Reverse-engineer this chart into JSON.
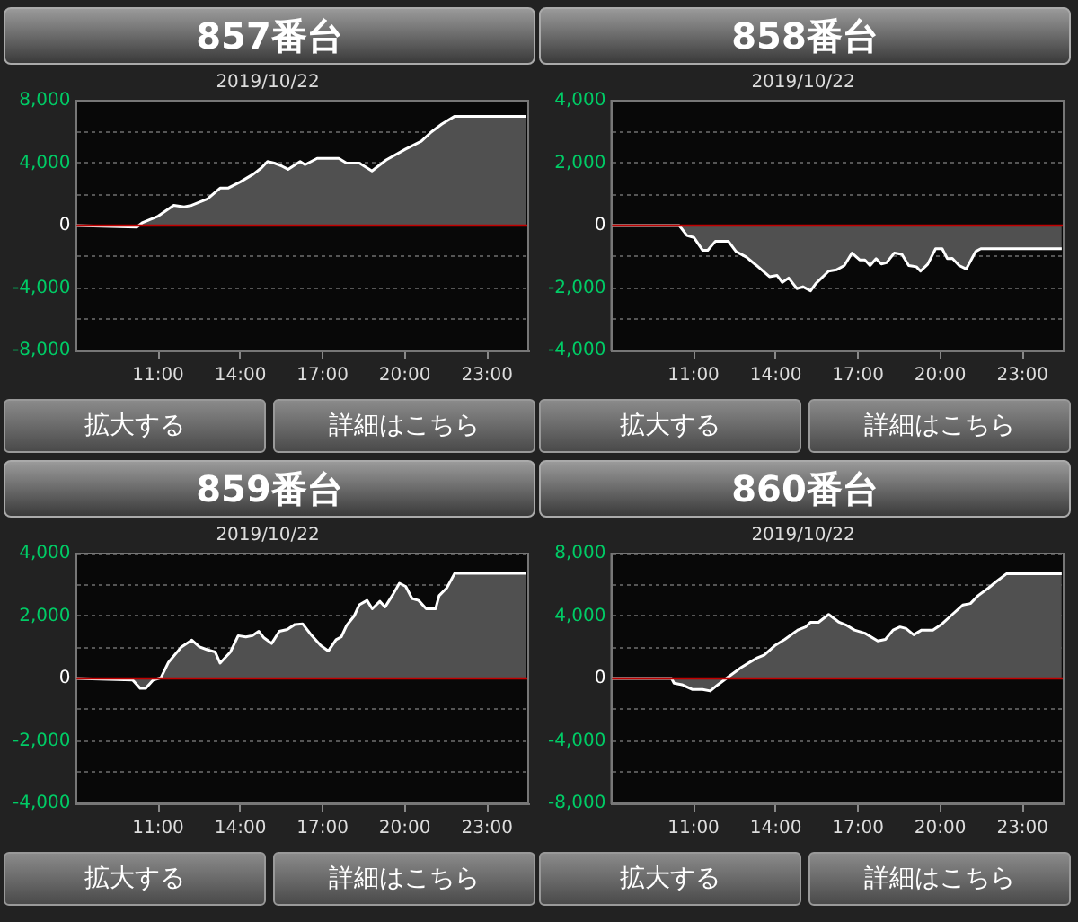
{
  "chart_data": [
    {
      "type": "area",
      "title": "857番台",
      "subtitle": "2019/10/22",
      "annotations": [
        "拡大する",
        "詳細はこちら"
      ],
      "marker": "none",
      "grid": "y",
      "color": "#ffffff",
      "ref_lines": [
        {
          "axis": "y",
          "value": 0,
          "color": "#c00000"
        }
      ],
      "xlim": [
        8,
        24.5
      ],
      "xticks": [
        {
          "value": 11,
          "label": "11:00"
        },
        {
          "value": 14,
          "label": "14:00"
        },
        {
          "value": 17,
          "label": "17:00"
        },
        {
          "value": 20,
          "label": "20:00"
        },
        {
          "value": 23,
          "label": "23:00"
        }
      ],
      "ylim": [
        -8000,
        8000
      ],
      "yticks": [
        {
          "value": -8000,
          "label": "-8,000"
        },
        {
          "value": -6000,
          "label": null
        },
        {
          "value": -4000,
          "label": "-4,000"
        },
        {
          "value": -2000,
          "label": null
        },
        {
          "value": 0,
          "label": "0"
        },
        {
          "value": 2000,
          "label": null
        },
        {
          "value": 4000,
          "label": "4,000"
        },
        {
          "value": 6000,
          "label": null
        },
        {
          "value": 8000,
          "label": "8,000"
        }
      ],
      "x": [
        8,
        10.22,
        10.44,
        11,
        11.57,
        11.95,
        12.23,
        12.8,
        13.26,
        13.55,
        14,
        14.48,
        14.77,
        14.99,
        15.24,
        15.52,
        15.74,
        16.18,
        16.36,
        16.8,
        17.59,
        17.87,
        18.34,
        18.8,
        19.32,
        20.03,
        20.6,
        20.97,
        21.35,
        21.82,
        24.41
      ],
      "values": [
        0,
        -100,
        200,
        600,
        1300,
        1200,
        1300,
        1700,
        2400,
        2400,
        2800,
        3300,
        3700,
        4100,
        4000,
        3800,
        3600,
        4100,
        3900,
        4300,
        4300,
        4000,
        4000,
        3500,
        4200,
        4900,
        5400,
        6000,
        6500,
        7000,
        7000
      ]
    },
    {
      "type": "area",
      "title": "858番台",
      "subtitle": "2019/10/22",
      "annotations": [
        "拡大する",
        "詳細はこちら"
      ],
      "marker": "none",
      "grid": "y",
      "color": "#ffffff",
      "ref_lines": [
        {
          "axis": "y",
          "value": 0,
          "color": "#c00000"
        }
      ],
      "xlim": [
        8,
        24.5
      ],
      "xticks": [
        {
          "value": 11,
          "label": "11:00"
        },
        {
          "value": 14,
          "label": "14:00"
        },
        {
          "value": 17,
          "label": "17:00"
        },
        {
          "value": 20,
          "label": "20:00"
        },
        {
          "value": 23,
          "label": "23:00"
        }
      ],
      "ylim": [
        -4000,
        4000
      ],
      "yticks": [
        {
          "value": -4000,
          "label": "-4,000"
        },
        {
          "value": -3000,
          "label": null
        },
        {
          "value": -2000,
          "label": "-2,000"
        },
        {
          "value": -1000,
          "label": null
        },
        {
          "value": 0,
          "label": "0"
        },
        {
          "value": 1000,
          "label": null
        },
        {
          "value": 2000,
          "label": "2,000"
        },
        {
          "value": 3000,
          "label": null
        },
        {
          "value": 4000,
          "label": "4,000"
        }
      ],
      "x": [
        8,
        10.48,
        10.76,
        11.01,
        11.33,
        11.52,
        11.8,
        12.27,
        12.55,
        12.93,
        13.3,
        13.77,
        14.05,
        14.24,
        14.47,
        14.77,
        14.99,
        15.27,
        15.46,
        15.93,
        16.21,
        16.5,
        16.78,
        17.06,
        17.25,
        17.44,
        17.66,
        17.85,
        18.04,
        18.32,
        18.6,
        18.85,
        19.13,
        19.28,
        19.54,
        19.83,
        20.07,
        20.26,
        20.44,
        20.69,
        20.95,
        21.29,
        21.48,
        24.43
      ],
      "values": [
        0,
        0,
        -320,
        -380,
        -790,
        -790,
        -500,
        -500,
        -830,
        -1010,
        -1280,
        -1640,
        -1600,
        -1820,
        -1680,
        -2020,
        -1960,
        -2090,
        -1860,
        -1460,
        -1420,
        -1280,
        -880,
        -1100,
        -1100,
        -1280,
        -1060,
        -1230,
        -1190,
        -880,
        -920,
        -1280,
        -1320,
        -1460,
        -1240,
        -740,
        -740,
        -1060,
        -1050,
        -1280,
        -1390,
        -830,
        -740,
        -740
      ]
    },
    {
      "type": "area",
      "title": "859番台",
      "subtitle": "2019/10/22",
      "annotations": [
        "拡大する",
        "詳細はこちら"
      ],
      "marker": "none",
      "grid": "y",
      "color": "#ffffff",
      "ref_lines": [
        {
          "axis": "y",
          "value": 0,
          "color": "#c00000"
        }
      ],
      "xlim": [
        8,
        24.5
      ],
      "xticks": [
        {
          "value": 11,
          "label": "11:00"
        },
        {
          "value": 14,
          "label": "14:00"
        },
        {
          "value": 17,
          "label": "17:00"
        },
        {
          "value": 20,
          "label": "20:00"
        },
        {
          "value": 23,
          "label": "23:00"
        }
      ],
      "ylim": [
        -4000,
        4000
      ],
      "yticks": [
        {
          "value": -4000,
          "label": "-4,000"
        },
        {
          "value": -3000,
          "label": null
        },
        {
          "value": -2000,
          "label": "-2,000"
        },
        {
          "value": -1000,
          "label": null
        },
        {
          "value": 0,
          "label": "0"
        },
        {
          "value": 1000,
          "label": null
        },
        {
          "value": 2000,
          "label": "2,000"
        },
        {
          "value": 3000,
          "label": null
        },
        {
          "value": 4000,
          "label": "4,000"
        }
      ],
      "x": [
        8,
        10.07,
        10.35,
        10.54,
        10.82,
        11.1,
        11.38,
        11.85,
        12.23,
        12.51,
        12.79,
        13.08,
        13.26,
        13.64,
        13.92,
        14.2,
        14.43,
        14.67,
        14.86,
        15.14,
        15.42,
        15.71,
        15.99,
        16.27,
        16.56,
        16.93,
        17.21,
        17.49,
        17.68,
        17.87,
        18.15,
        18.34,
        18.62,
        18.81,
        19.09,
        19.28,
        19.56,
        19.8,
        20.03,
        20.26,
        20.5,
        20.78,
        21.12,
        21.25,
        21.53,
        21.82,
        24.41
      ],
      "values": [
        0,
        -50,
        -320,
        -320,
        -50,
        20,
        520,
        1010,
        1230,
        1010,
        920,
        850,
        490,
        850,
        1370,
        1330,
        1370,
        1510,
        1300,
        1120,
        1510,
        1570,
        1730,
        1750,
        1420,
        1060,
        880,
        1240,
        1330,
        1690,
        2000,
        2360,
        2500,
        2230,
        2470,
        2290,
        2680,
        3050,
        2950,
        2560,
        2500,
        2230,
        2230,
        2650,
        2900,
        3370,
        3370
      ]
    },
    {
      "type": "area",
      "title": "860番台",
      "subtitle": "2019/10/22",
      "annotations": [
        "拡大する",
        "詳細はこちら"
      ],
      "marker": "none",
      "grid": "y",
      "color": "#ffffff",
      "ref_lines": [
        {
          "axis": "y",
          "value": 0,
          "color": "#c00000"
        }
      ],
      "xlim": [
        8,
        24.5
      ],
      "xticks": [
        {
          "value": 11,
          "label": "11:00"
        },
        {
          "value": 14,
          "label": "14:00"
        },
        {
          "value": 17,
          "label": "17:00"
        },
        {
          "value": 20,
          "label": "20:00"
        },
        {
          "value": 23,
          "label": "23:00"
        }
      ],
      "ylim": [
        -8000,
        8000
      ],
      "yticks": [
        {
          "value": -8000,
          "label": "-8,000"
        },
        {
          "value": -6000,
          "label": null
        },
        {
          "value": -4000,
          "label": "-4,000"
        },
        {
          "value": -2000,
          "label": null
        },
        {
          "value": 0,
          "label": "0"
        },
        {
          "value": 2000,
          "label": null
        },
        {
          "value": 4000,
          "label": "4,000"
        },
        {
          "value": 6000,
          "label": null
        },
        {
          "value": 8000,
          "label": "8,000"
        }
      ],
      "x": [
        8,
        10.2,
        10.29,
        10.58,
        10.95,
        11.33,
        11.61,
        11.89,
        12.27,
        12.74,
        13.11,
        13.3,
        13.58,
        13.96,
        14.33,
        14.8,
        15.09,
        15.27,
        15.56,
        15.93,
        16.31,
        16.59,
        16.87,
        17.25,
        17.72,
        18,
        18.28,
        18.53,
        18.75,
        19.03,
        19.32,
        19.73,
        20.07,
        20.44,
        20.82,
        21.1,
        21.38,
        21.76,
        22.04,
        22.41,
        24.43
      ],
      "values": [
        0,
        0,
        -300,
        -400,
        -700,
        -700,
        -800,
        -400,
        100,
        700,
        1100,
        1300,
        1500,
        2100,
        2500,
        3100,
        3300,
        3600,
        3600,
        4100,
        3600,
        3400,
        3100,
        2900,
        2400,
        2500,
        3100,
        3300,
        3200,
        2800,
        3100,
        3100,
        3500,
        4100,
        4700,
        4800,
        5300,
        5800,
        6200,
        6700,
        6700
      ]
    }
  ]
}
